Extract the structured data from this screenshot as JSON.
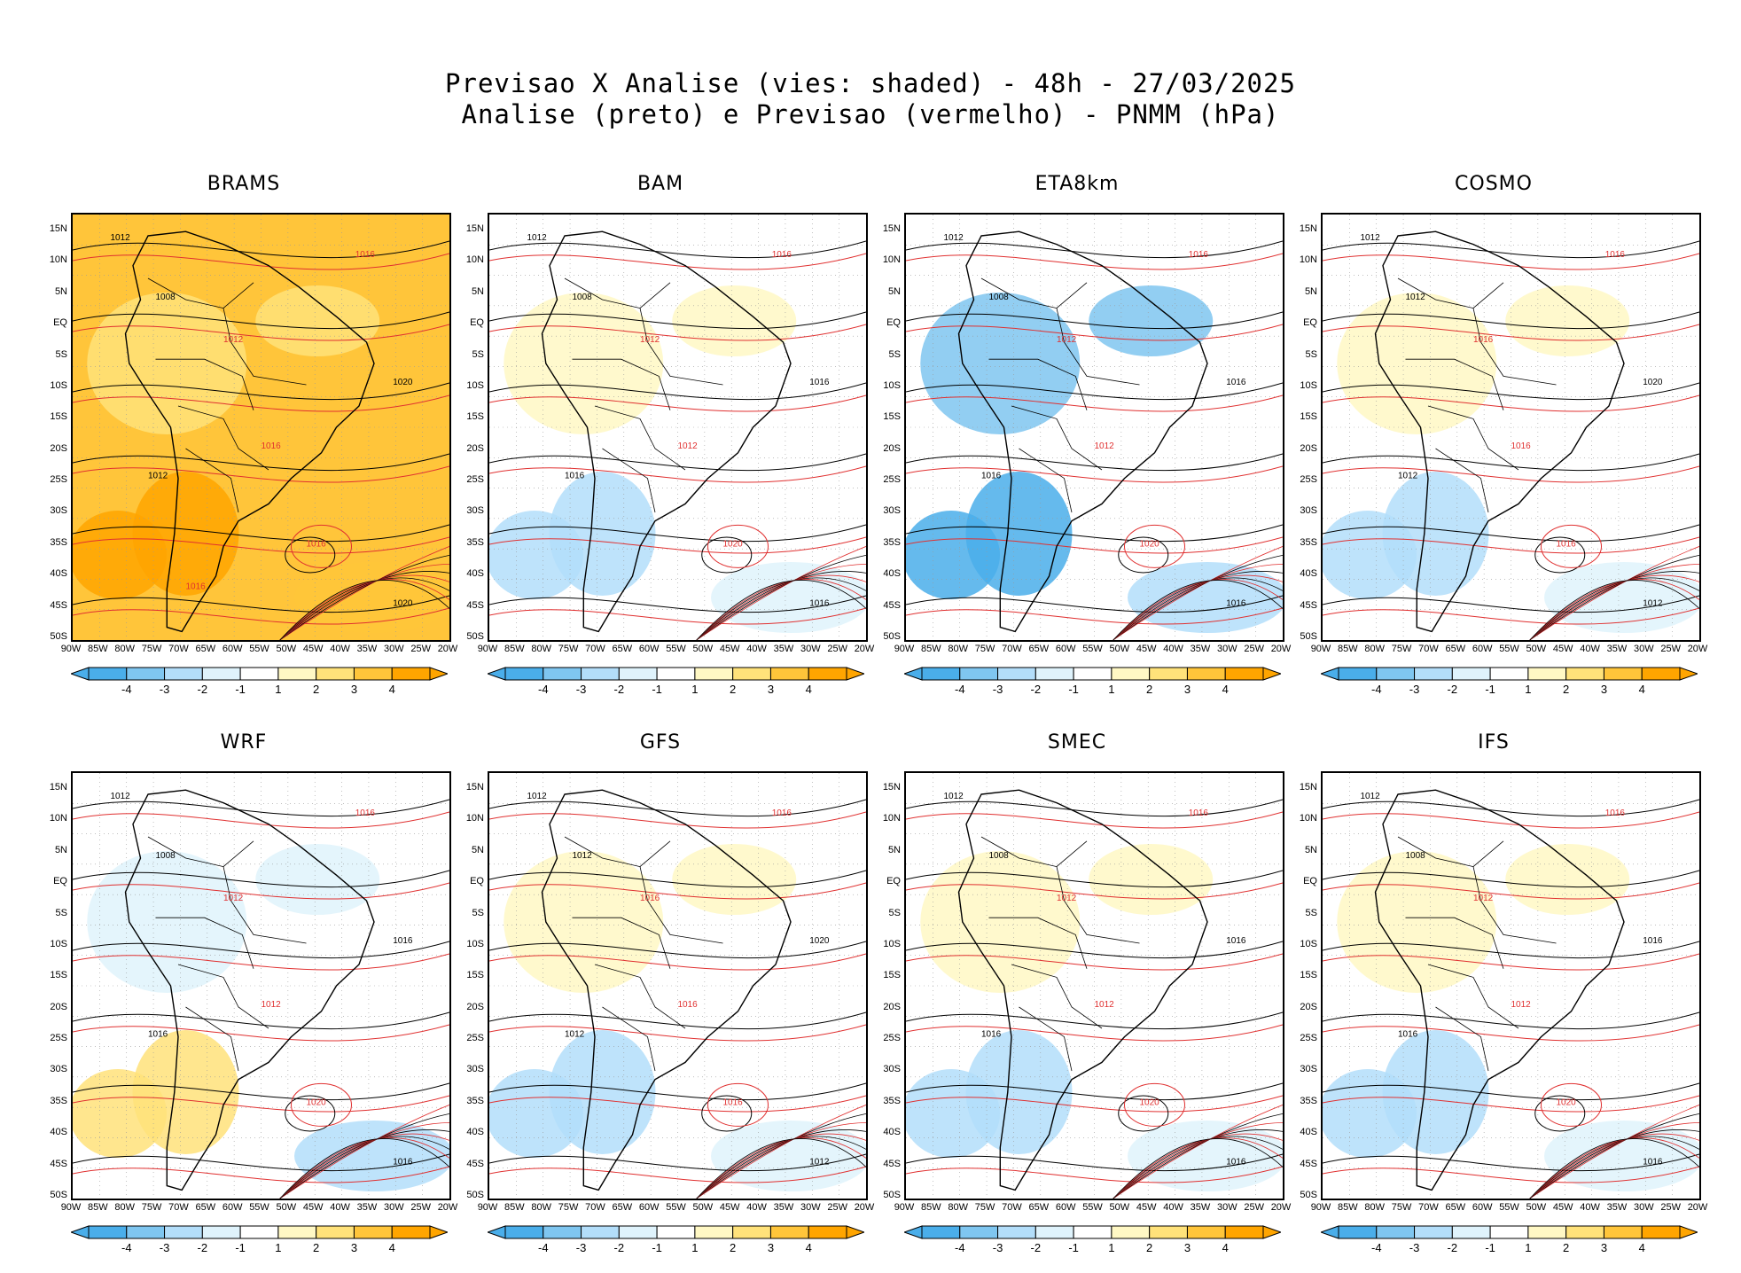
{
  "title": {
    "line1": "Previsao X Analise (vies: shaded) - 48h - 27/03/2025",
    "line2": "Analise (preto) e Previsao (vermelho) - PNMM (hPa)"
  },
  "axes": {
    "lat_labels": [
      "15N",
      "10N",
      "5N",
      "EQ",
      "5S",
      "10S",
      "15S",
      "20S",
      "25S",
      "30S",
      "35S",
      "40S",
      "45S",
      "50S"
    ],
    "lon_labels": [
      "90W",
      "85W",
      "80W",
      "75W",
      "70W",
      "65W",
      "60W",
      "55W",
      "50W",
      "45W",
      "40W",
      "35W",
      "30W",
      "25W",
      "20W"
    ]
  },
  "colorbar": {
    "labels": [
      "-4",
      "-3",
      "-2",
      "-1",
      "1",
      "2",
      "3",
      "4"
    ],
    "colors": [
      "#4aaeea",
      "#7fc6f0",
      "#b3defa",
      "#dff3fc",
      "#ffffff",
      "#fff8c4",
      "#ffe27a",
      "#ffc53a",
      "#ffa500"
    ]
  },
  "panels": [
    {
      "name": "BRAMS",
      "bias": "warm",
      "contours": [
        "1012",
        "1016",
        "1008",
        "1012",
        "1020",
        "1016",
        "1012",
        "1016",
        "1020",
        "1016"
      ]
    },
    {
      "name": "BAM",
      "bias": "neutral",
      "contours": [
        "1012",
        "1016",
        "1008",
        "1012",
        "1016",
        "1020",
        "1016",
        "1012",
        "1016"
      ]
    },
    {
      "name": "ETA8km",
      "bias": "cold",
      "contours": [
        "1012",
        "1016",
        "1008",
        "1012",
        "1016",
        "1020",
        "1016",
        "1012",
        "1016"
      ]
    },
    {
      "name": "COSMO",
      "bias": "neutral",
      "contours": [
        "1012",
        "1016",
        "1012",
        "1016",
        "1020",
        "1016",
        "1012",
        "1016",
        "1012"
      ]
    },
    {
      "name": "WRF",
      "bias": "mixed",
      "contours": [
        "1012",
        "1016",
        "1008",
        "1012",
        "1016",
        "1020",
        "1016",
        "1012",
        "1016"
      ]
    },
    {
      "name": "GFS",
      "bias": "neutral",
      "contours": [
        "1012",
        "1016",
        "1012",
        "1016",
        "1020",
        "1016",
        "1012",
        "1016",
        "1012"
      ]
    },
    {
      "name": "SMEC",
      "bias": "neutral",
      "contours": [
        "1012",
        "1016",
        "1008",
        "1012",
        "1016",
        "1020",
        "1016",
        "1012",
        "1016"
      ]
    },
    {
      "name": "IFS",
      "bias": "neutral",
      "contours": [
        "1012",
        "1016",
        "1008",
        "1012",
        "1016",
        "1020",
        "1016",
        "1012",
        "1016"
      ]
    }
  ]
}
